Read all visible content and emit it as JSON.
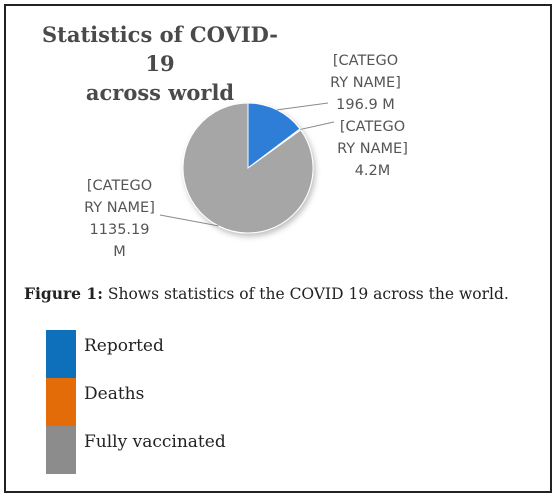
{
  "chart_data": {
    "type": "pie",
    "title": "Statistics of COVID-19 across world",
    "title_lines": [
      "Statistics of COVID-19",
      "across world"
    ],
    "categories": [
      "Reported",
      "Deaths",
      "Fully vaccinated"
    ],
    "values": [
      196.9,
      4.2,
      1135.19
    ],
    "colors": [
      "#2f7ed8",
      "#e36c09",
      "#a6a6a6"
    ],
    "data_labels": [
      [
        "[CATEGO",
        "RY NAME]",
        "196.9 M"
      ],
      [
        "[CATEGO",
        "RY NAME]",
        "4.2M"
      ],
      [
        "[CATEGO",
        "RY NAME]",
        "1135.19",
        "M"
      ]
    ],
    "legend_position": "bottom"
  },
  "caption": {
    "prefix": "Figure 1:",
    "text": " Shows statistics of the COVID 19 across the world."
  },
  "legend": {
    "items": [
      {
        "label": "Reported",
        "color": "#0e6fba"
      },
      {
        "label": "Deaths",
        "color": "#e36c09"
      },
      {
        "label": "Fully vaccinated",
        "color": "#8c8c8c"
      }
    ]
  }
}
